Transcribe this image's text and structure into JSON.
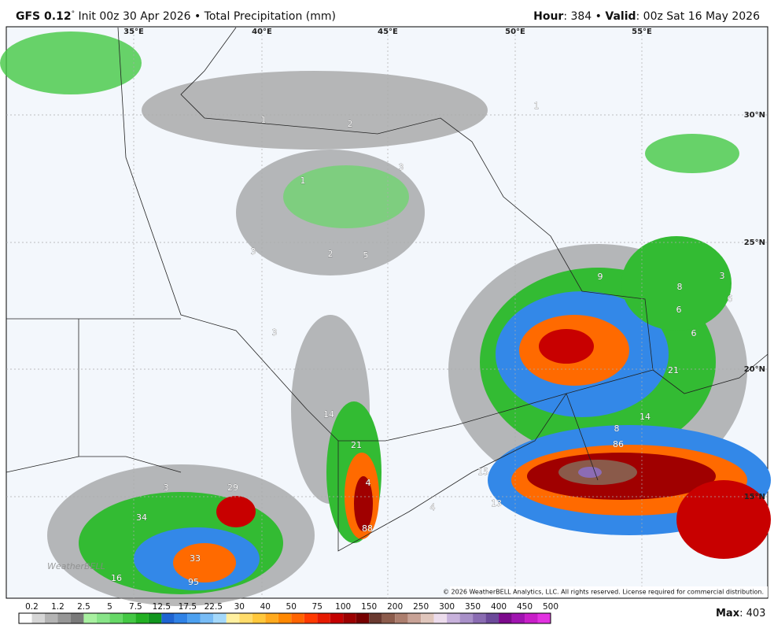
{
  "header": {
    "model": "GFS 0.12",
    "degree": "°",
    "description": " Init 00z 30 Apr 2026 • Total Precipitation (mm)",
    "hour_label": "Hour",
    "hour_value": ": 384 • ",
    "valid_label": "Valid",
    "valid_value": ": 00z Sat 16 May 2026"
  },
  "map": {
    "longitudes": [
      "35°E",
      "40°E",
      "45°E",
      "50°E",
      "55°E"
    ],
    "latitudes": [
      "30°N",
      "25°N",
      "20°N",
      "15°N"
    ],
    "labels": [
      2,
      1,
      3,
      1,
      1,
      3,
      2,
      5,
      9,
      8,
      3,
      6,
      6,
      6,
      21,
      14,
      8,
      86,
      15,
      13,
      4,
      21,
      4,
      88,
      14,
      3,
      3,
      34,
      29,
      33,
      95,
      16
    ],
    "logo": "WeatherBELL",
    "copyright": "© 2026 WeatherBELL Analytics, LLC. All rights reserved. License required for commercial distribution."
  },
  "colorbar": {
    "labels": [
      "0.2",
      "1.2",
      "2.5",
      "5",
      "7.5",
      "12.5",
      "17.5",
      "22.5",
      "30",
      "40",
      "50",
      "75",
      "100",
      "150",
      "200",
      "250",
      "300",
      "350",
      "400",
      "450",
      "500"
    ],
    "colors": [
      "#ffffff",
      "#d6d6d6",
      "#b4b4b4",
      "#969696",
      "#7a7a7a",
      "#a8f0a0",
      "#88e488",
      "#66d866",
      "#44c844",
      "#22b022",
      "#11961e",
      "#1e64d2",
      "#2f82e6",
      "#4ca0f0",
      "#78bcf6",
      "#a4d8fa",
      "#fff0a0",
      "#ffdc6a",
      "#ffc83c",
      "#ffaa1e",
      "#ff8800",
      "#ff6400",
      "#ff3a00",
      "#e61a00",
      "#c40000",
      "#9c0000",
      "#760000",
      "#6a3a30",
      "#8c5c4c",
      "#ac7e6e",
      "#c8a296",
      "#e0c6bc",
      "#ecdcec",
      "#c8b2dc",
      "#a890c8",
      "#8a6cb2",
      "#6c4a9a",
      "#7c0a8c",
      "#a014b0",
      "#c81ec8",
      "#e232e0"
    ]
  },
  "footer": {
    "max_label": "Max",
    "max_value": ": 403"
  }
}
